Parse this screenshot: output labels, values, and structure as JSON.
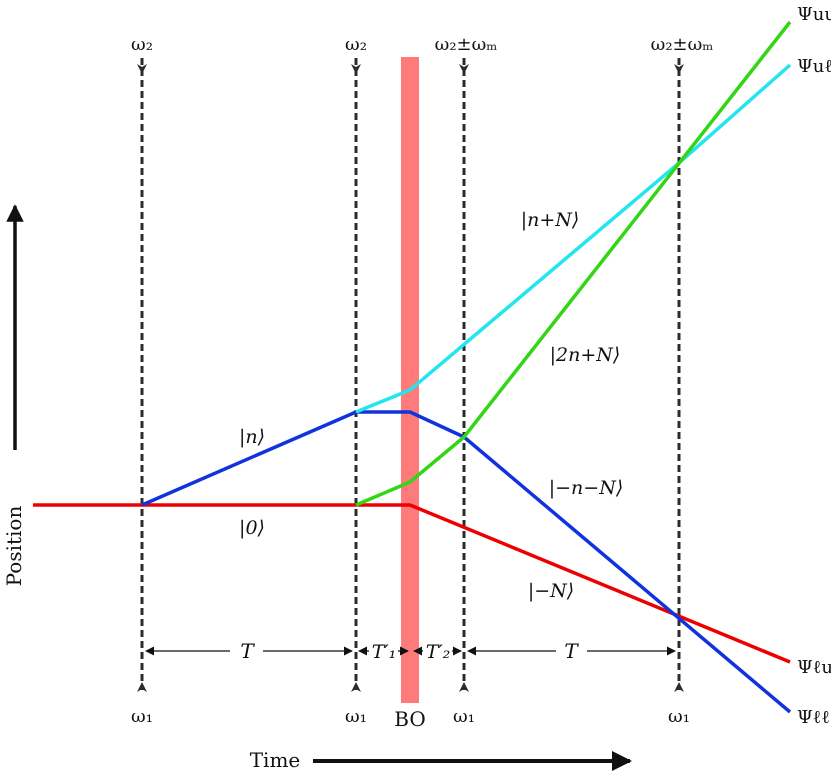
{
  "axis": {
    "position": "Position",
    "time": "Time"
  },
  "top_labels": [
    "ω₂",
    "ω₂",
    "ω₂±ωₘ",
    "ω₂±ωₘ"
  ],
  "bottom_labels": [
    "ω₁",
    "ω₁",
    "ω₁",
    "ω₁"
  ],
  "bo_label": "BO",
  "intervals": [
    "T",
    "T′₁",
    "T′₂",
    "T"
  ],
  "state_labels": {
    "n": "|n⟩",
    "zero": "|0⟩",
    "n_plus_N": "|n+N⟩",
    "two_n_plus_N": "|2n+N⟩",
    "minus_n_minus_N": "|−n−N⟩",
    "minus_N": "|−N⟩"
  },
  "outputs": {
    "uu": "Ψuu",
    "ul": "Ψuℓ",
    "lu": "Ψℓu",
    "ll": "Ψℓℓ"
  },
  "colors": {
    "red": "#ee0000",
    "blue": "#1133dd",
    "cyan": "#22e5f0",
    "green": "#33d615",
    "bo_band": "#ff7a7a",
    "marker": "#2c2c2c"
  }
}
